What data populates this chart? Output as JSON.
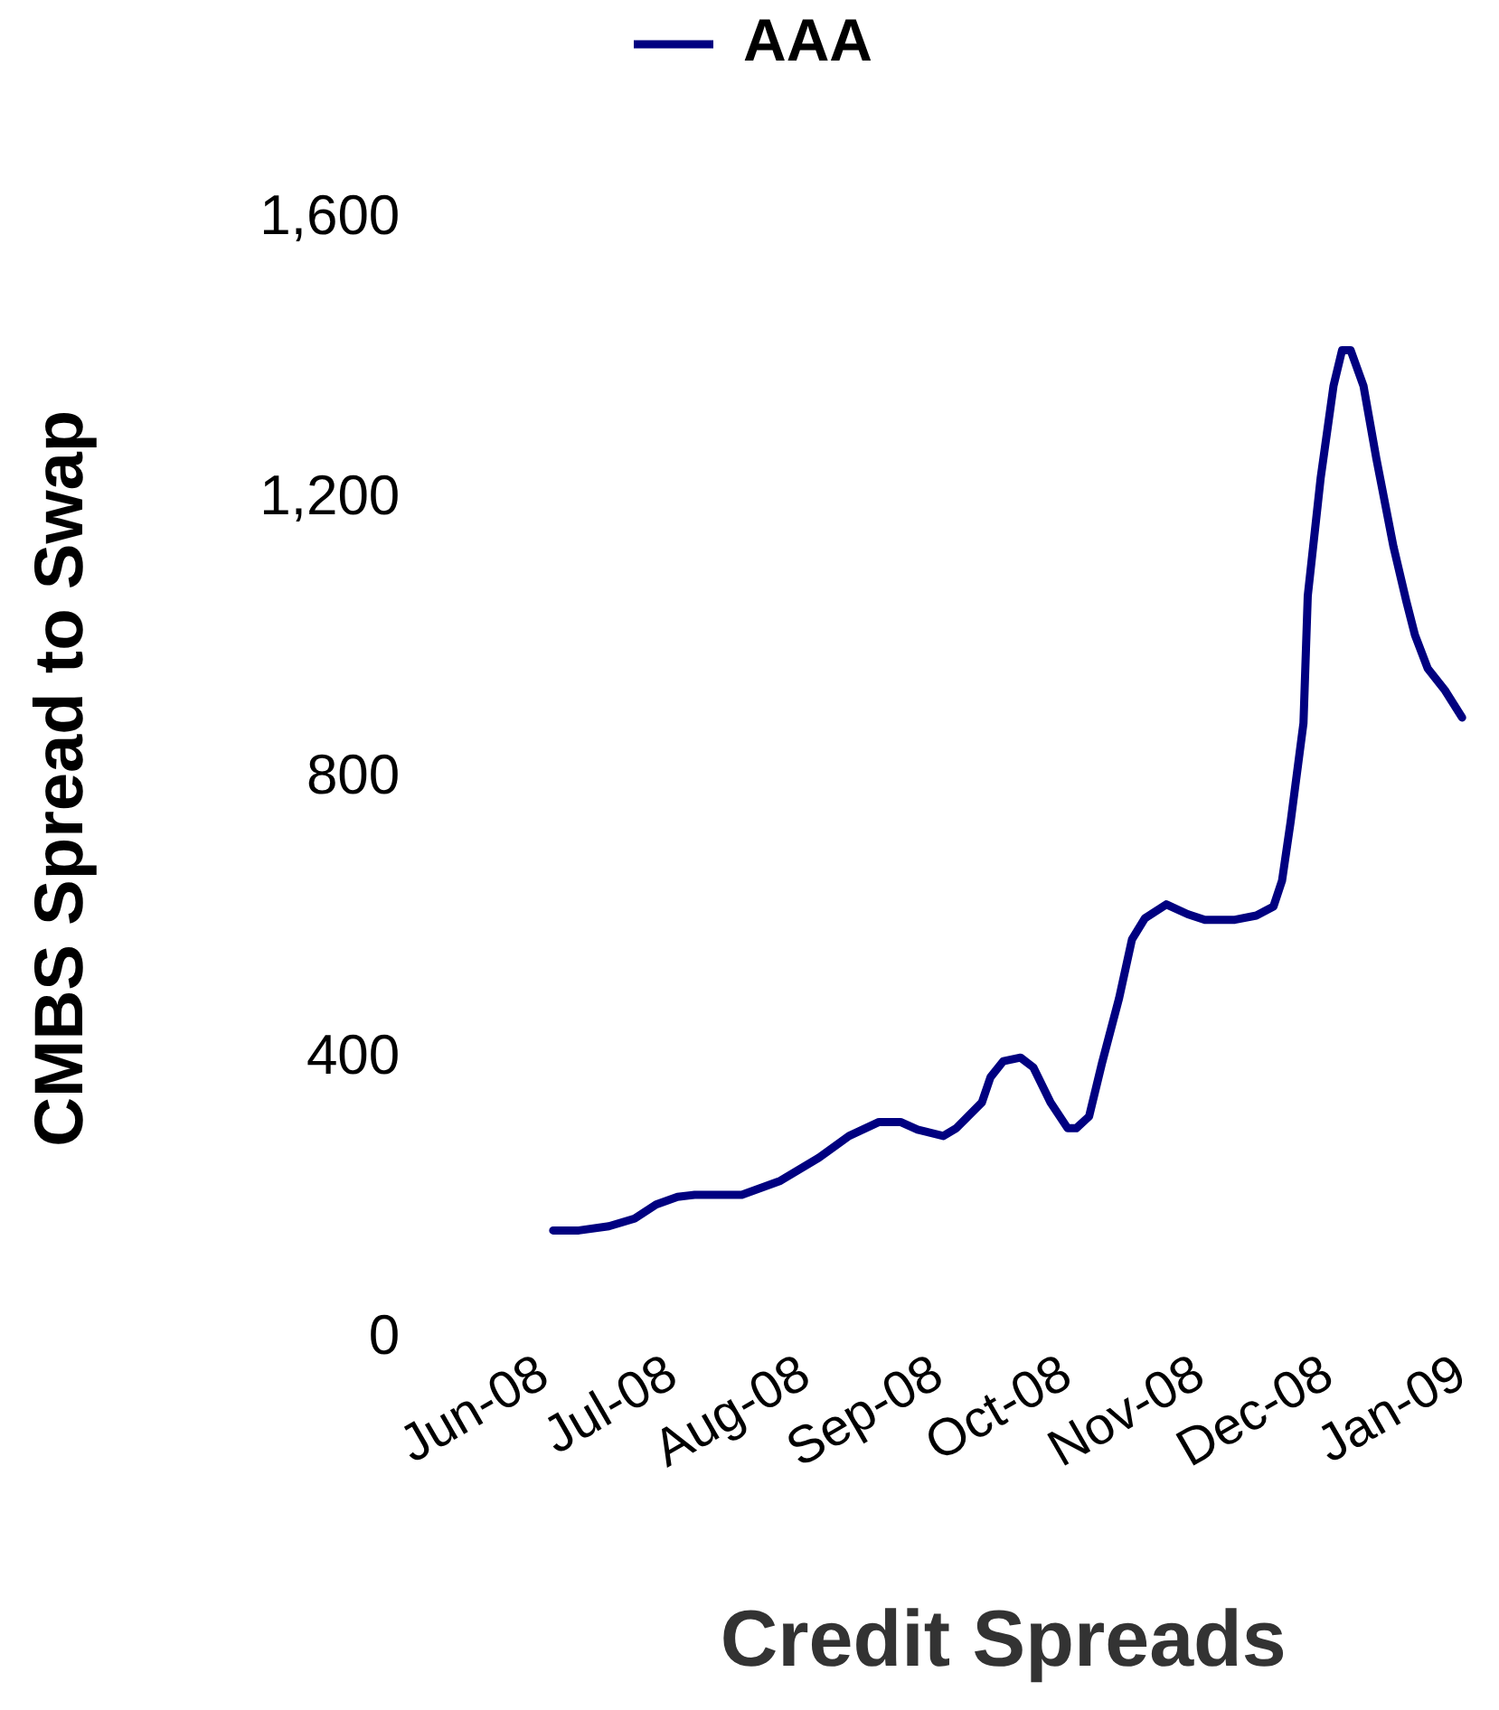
{
  "chart_data": {
    "type": "line",
    "xlabel": "Credit Spreads",
    "ylabel": "CMBS Spread to Swap",
    "legend": "top",
    "grid": false,
    "marker": "none",
    "xlim": [
      "2008-06-01",
      "2009-01-01"
    ],
    "xticks": [
      {
        "value": "2008-06-01",
        "label": "Jun-08"
      },
      {
        "value": "2008-07-01",
        "label": "Jul-08"
      },
      {
        "value": "2008-08-01",
        "label": "Aug-08"
      },
      {
        "value": "2008-09-01",
        "label": "Sep-08"
      },
      {
        "value": "2008-10-01",
        "label": "Oct-08"
      },
      {
        "value": "2008-11-01",
        "label": "Nov-08"
      },
      {
        "value": "2008-12-01",
        "label": "Dec-08"
      },
      {
        "value": "2009-01-01",
        "label": "Jan-09"
      }
    ],
    "ylim": [
      0,
      1600
    ],
    "yticks": [
      0,
      400,
      800,
      {
        "value": 1200,
        "label": "1,200"
      },
      {
        "value": 1600,
        "label": "1,600"
      }
    ],
    "x": [
      "2008-06-03",
      "2008-06-09",
      "2008-06-16",
      "2008-06-22",
      "2008-06-27",
      "2008-07-02",
      "2008-07-06",
      "2008-07-17",
      "2008-07-26",
      "2008-08-04",
      "2008-08-11",
      "2008-08-18",
      "2008-08-23",
      "2008-08-27",
      "2008-09-02",
      "2008-09-05",
      "2008-09-11",
      "2008-09-13",
      "2008-09-16",
      "2008-09-20",
      "2008-09-23",
      "2008-09-27",
      "2008-10-01",
      "2008-10-03",
      "2008-10-06",
      "2008-10-09",
      "2008-10-13",
      "2008-10-16",
      "2008-10-19",
      "2008-10-24",
      "2008-10-29",
      "2008-11-02",
      "2008-11-09",
      "2008-11-14",
      "2008-11-18",
      "2008-11-20",
      "2008-11-22",
      "2008-11-25",
      "2008-11-26",
      "2008-11-29",
      "2008-12-02",
      "2008-12-04",
      "2008-12-06",
      "2008-12-09",
      "2008-12-12",
      "2008-12-16",
      "2008-12-19",
      "2008-12-21",
      "2008-12-24",
      "2008-12-28",
      "2009-01-01"
    ],
    "series": [
      {
        "name": "AAA",
        "color": "#000080",
        "values": [
          154,
          154,
          160,
          171,
          191,
          202,
          205,
          205,
          225,
          258,
          289,
          309,
          309,
          298,
          289,
          300,
          337,
          373,
          396,
          401,
          387,
          337,
          300,
          300,
          317,
          393,
          486,
          570,
          600,
          620,
          606,
          598,
          598,
          604,
          617,
          654,
          738,
          879,
          1061,
          1229,
          1361,
          1412,
          1412,
          1361,
          1257,
          1131,
          1053,
          1005,
          957,
          926,
          887
        ]
      }
    ]
  }
}
